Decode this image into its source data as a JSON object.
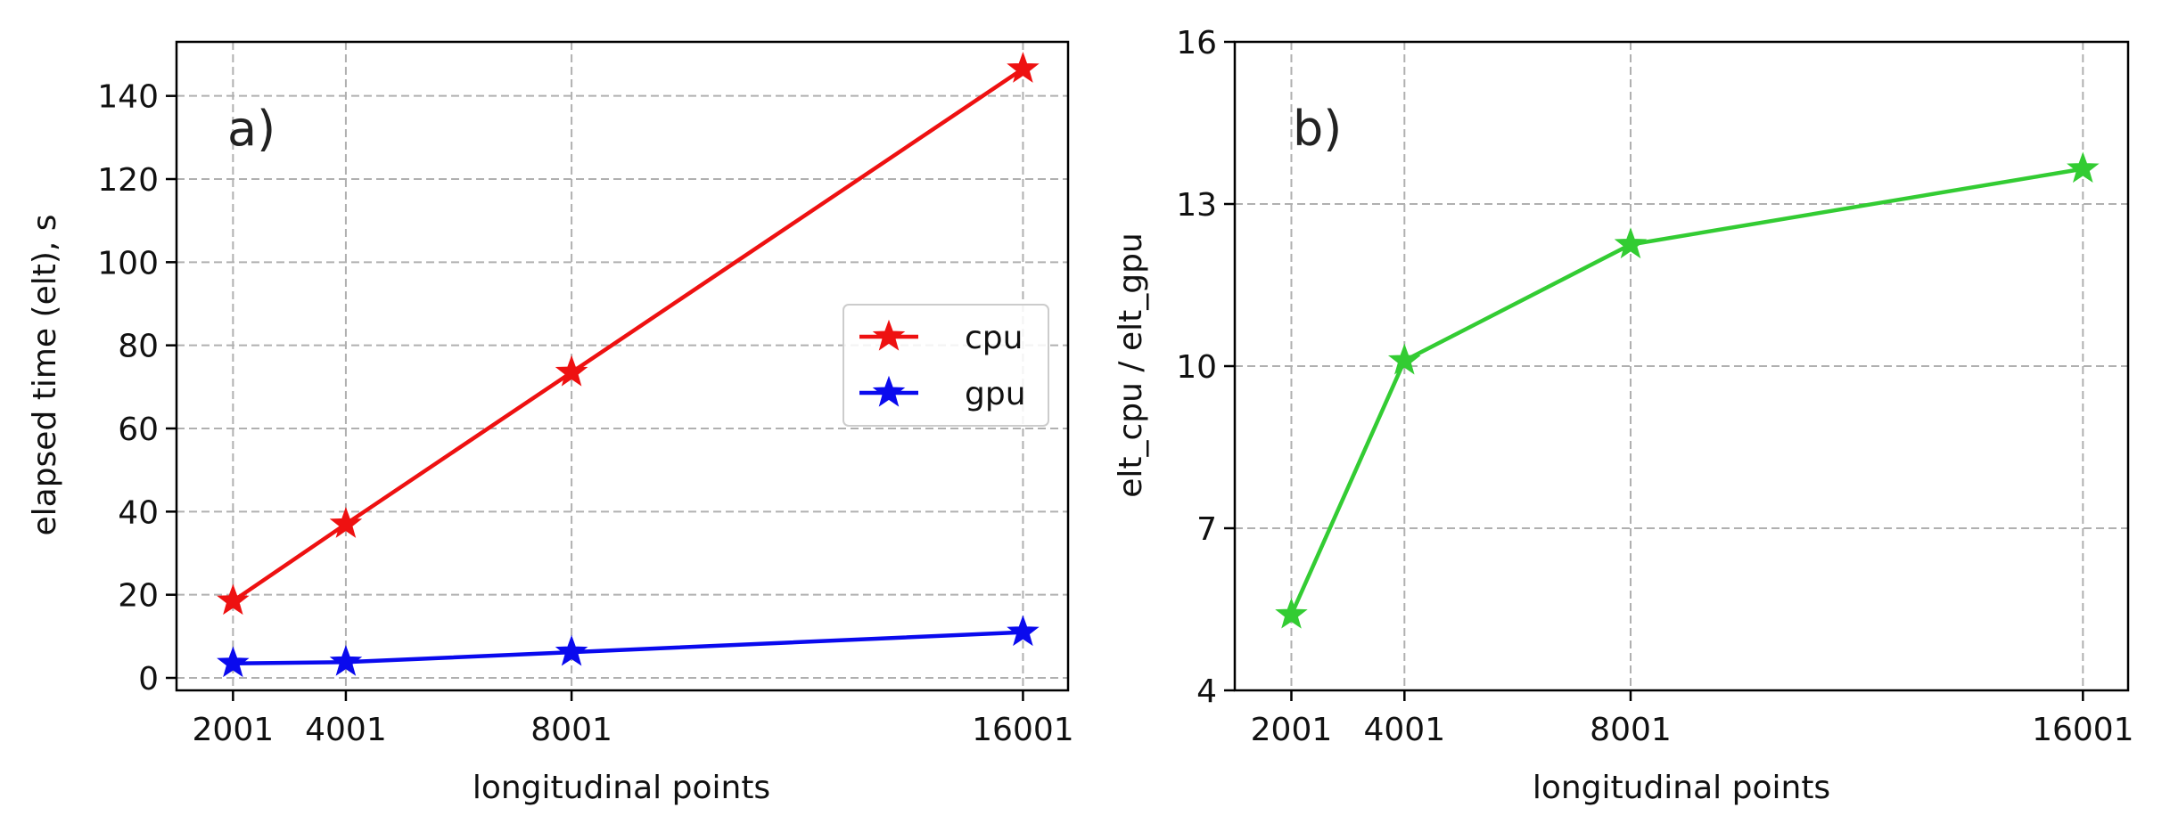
{
  "chart_data": [
    {
      "type": "line",
      "panel_label": "a)",
      "xlabel": "longitudinal points",
      "ylabel": "elapsed time (elt), s",
      "x": [
        2001,
        4001,
        8001,
        16001
      ],
      "x_tick_labels": [
        "2001",
        "4001",
        "8001",
        "16001"
      ],
      "y_ticks": [
        0,
        20,
        40,
        60,
        80,
        100,
        120,
        140
      ],
      "y_tick_labels": [
        "0",
        "20",
        "40",
        "60",
        "80",
        "100",
        "120",
        "140"
      ],
      "xlim": [
        1000,
        16800
      ],
      "ylim": [
        -3,
        153
      ],
      "grid": true,
      "legend_position": "center-right",
      "series": [
        {
          "name": "cpu",
          "color": "#ee1111",
          "marker": "star",
          "values": [
            18.5,
            37,
            73.5,
            146.5
          ]
        },
        {
          "name": "gpu",
          "color": "#0a0aee",
          "marker": "star",
          "values": [
            3.5,
            3.8,
            6.2,
            11
          ]
        }
      ]
    },
    {
      "type": "line",
      "panel_label": "b)",
      "xlabel": "longitudinal points",
      "ylabel": "elt_cpu / elt_gpu",
      "x": [
        2001,
        4001,
        8001,
        16001
      ],
      "x_tick_labels": [
        "2001",
        "4001",
        "8001",
        "16001"
      ],
      "y_ticks": [
        4,
        7,
        10,
        13,
        16
      ],
      "y_tick_labels": [
        "4",
        "7",
        "10",
        "13",
        "16"
      ],
      "xlim": [
        1000,
        16800
      ],
      "ylim": [
        4,
        16
      ],
      "grid": true,
      "series": [
        {
          "color": "#33cc33",
          "marker": "star",
          "values": [
            5.4,
            10.1,
            12.25,
            13.65
          ]
        }
      ]
    }
  ]
}
